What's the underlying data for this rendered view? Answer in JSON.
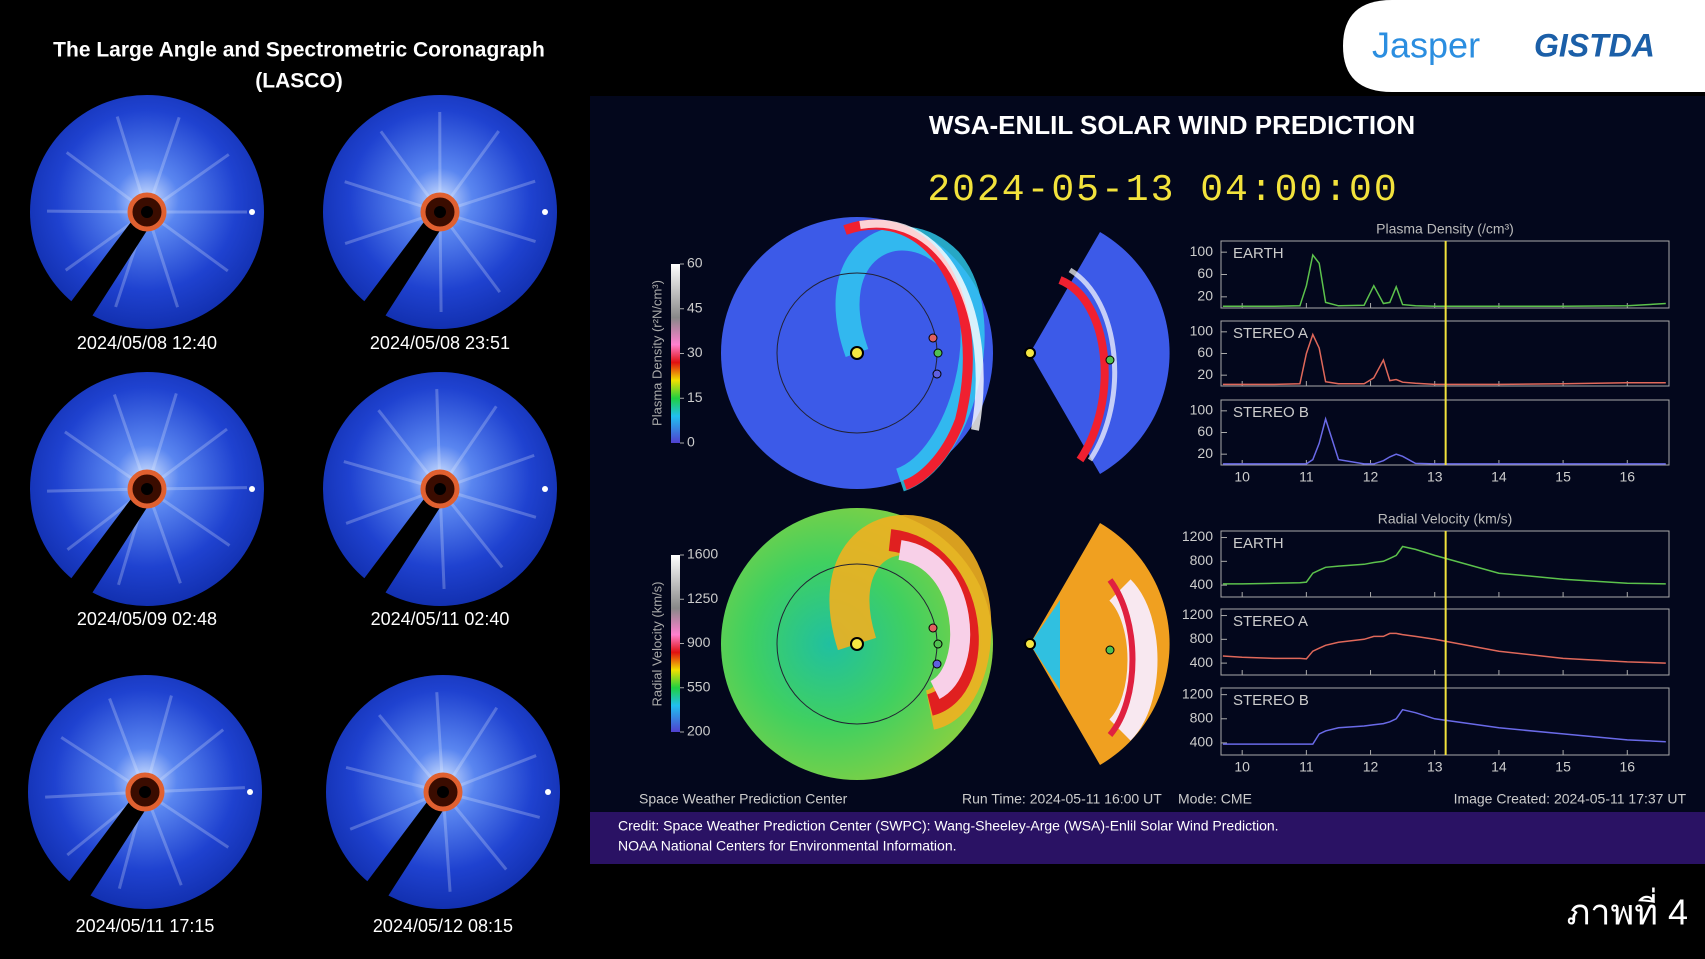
{
  "header": {
    "title": [
      "The Large Angle and Spectrometric Coronagraph",
      "(LASCO)"
    ]
  },
  "logos": [
    "Jasper",
    "GISTDA"
  ],
  "lasco_images": [
    {
      "timestamp": "2024/05/08 12:40"
    },
    {
      "timestamp": "2024/05/08 23:51"
    },
    {
      "timestamp": "2024/05/09 02:48"
    },
    {
      "timestamp": "2024/05/11 02:40"
    },
    {
      "timestamp": "2024/05/11 17:15"
    },
    {
      "timestamp": "2024/05/12 08:15"
    }
  ],
  "enlil": {
    "title": "WSA-ENLIL SOLAR WIND PREDICTION",
    "datetime": "2024-05-13 04:00:00",
    "density_colorbar": {
      "label": "Plasma Density (r²N/cm³)",
      "ticks": [
        60,
        45,
        30,
        15,
        0
      ]
    },
    "velocity_colorbar": {
      "label": "Radial Velocity (km/s)",
      "ticks": [
        1600,
        1250,
        900,
        550,
        200
      ]
    },
    "footer": {
      "source": "Space Weather Prediction Center",
      "run_time": "Run Time: 2024-05-11 16:00 UT",
      "mode": "Mode: CME",
      "created": "Image Created: 2024-05-11 17:37 UT"
    },
    "credit": [
      "Credit: Space Weather Prediction Center (SWPC): Wang-Sheeley-Arge (WSA)-Enlil Solar Wind Prediction.",
      "NOAA National Centers for Environmental Information."
    ]
  },
  "chart_data": [
    {
      "type": "line",
      "title": "Plasma Density (/cm³)",
      "x": [
        9.7,
        10,
        10.5,
        10.9,
        11.0,
        11.1,
        11.2,
        11.3,
        11.5,
        11.9,
        12.05,
        12.2,
        12.3,
        12.4,
        12.5,
        12.7,
        13,
        14,
        15,
        16,
        16.6
      ],
      "xlim": [
        9.67,
        16.65
      ],
      "xticks": [
        10,
        11,
        12,
        13,
        14,
        15,
        16
      ],
      "marker_x": 13.17,
      "series": [
        {
          "name": "EARTH",
          "color": "#5cc24c",
          "ylim": [
            0,
            120
          ],
          "yticks": [
            100,
            60,
            20
          ],
          "values": [
            3,
            3,
            3,
            4,
            40,
            95,
            80,
            10,
            4,
            5,
            40,
            8,
            10,
            38,
            6,
            4,
            3,
            3,
            3,
            4,
            8
          ]
        },
        {
          "name": "STEREO A",
          "color": "#e0685a",
          "ylim": [
            0,
            120
          ],
          "yticks": [
            100,
            60,
            20
          ],
          "values": [
            3,
            3,
            3,
            4,
            60,
            95,
            70,
            8,
            4,
            4,
            15,
            48,
            10,
            12,
            7,
            5,
            3,
            3,
            4,
            6,
            6
          ]
        },
        {
          "name": "STEREO B",
          "color": "#6a6ae8",
          "ylim": [
            0,
            120
          ],
          "yticks": [
            100,
            60,
            20
          ],
          "values": [
            2,
            2,
            2,
            2,
            2,
            10,
            40,
            85,
            10,
            2,
            2,
            8,
            15,
            20,
            16,
            3,
            2,
            2,
            2,
            2,
            2
          ]
        }
      ]
    },
    {
      "type": "line",
      "title": "Radial Velocity (km/s)",
      "x": [
        9.7,
        10,
        10.5,
        10.9,
        11.0,
        11.1,
        11.2,
        11.3,
        11.5,
        11.9,
        12.05,
        12.2,
        12.3,
        12.4,
        12.5,
        12.7,
        13,
        14,
        15,
        16,
        16.6
      ],
      "xlim": [
        9.67,
        16.65
      ],
      "xticks": [
        10,
        11,
        12,
        13,
        14,
        15,
        16
      ],
      "marker_x": 13.17,
      "series": [
        {
          "name": "EARTH",
          "color": "#5cc24c",
          "ylim": [
            200,
            1310
          ],
          "yticks": [
            1200,
            800,
            400
          ],
          "values": [
            420,
            420,
            430,
            440,
            450,
            600,
            650,
            700,
            720,
            750,
            780,
            800,
            850,
            900,
            1050,
            1000,
            900,
            600,
            500,
            430,
            420
          ]
        },
        {
          "name": "STEREO A",
          "color": "#e0685a",
          "ylim": [
            200,
            1310
          ],
          "yticks": [
            1200,
            800,
            400
          ],
          "values": [
            520,
            500,
            480,
            480,
            470,
            600,
            650,
            700,
            750,
            800,
            850,
            850,
            900,
            900,
            880,
            850,
            800,
            600,
            480,
            420,
            400
          ]
        },
        {
          "name": "STEREO B",
          "color": "#6a6ae8",
          "ylim": [
            200,
            1310
          ],
          "yticks": [
            1200,
            800,
            400
          ],
          "values": [
            380,
            380,
            380,
            380,
            380,
            380,
            550,
            600,
            650,
            680,
            700,
            720,
            750,
            800,
            950,
            900,
            800,
            650,
            550,
            450,
            420
          ]
        }
      ]
    }
  ],
  "figure_label": "ภาพที่ 4"
}
